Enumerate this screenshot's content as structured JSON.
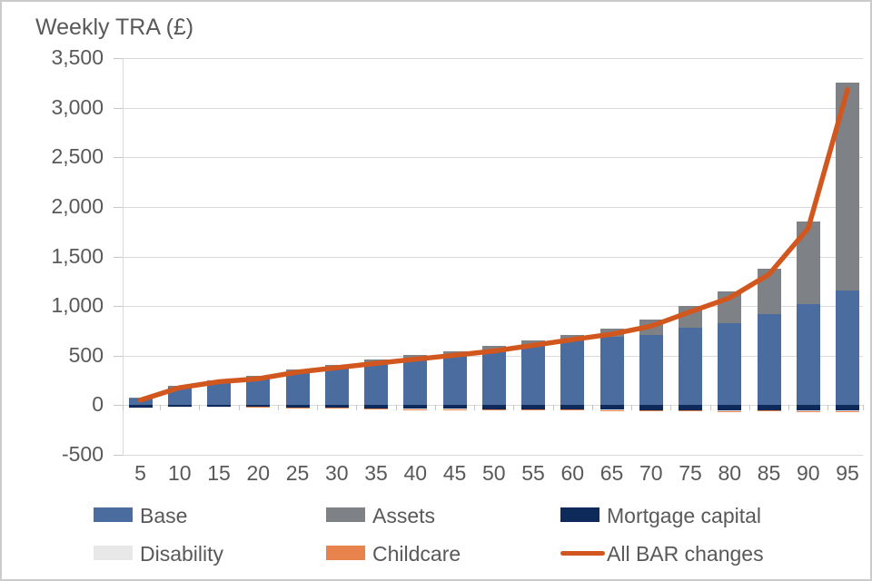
{
  "title": "Weekly TRA (£)",
  "chart_data": {
    "type": "bar",
    "subtype": "stacked-with-line",
    "title": "Weekly TRA (£)",
    "xlabel": "",
    "ylabel": "Weekly TRA (£)",
    "ylim": [
      -500,
      3500
    ],
    "grid": "horizontal",
    "legend_position": "bottom",
    "categories": [
      "5",
      "10",
      "15",
      "20",
      "25",
      "30",
      "35",
      "40",
      "45",
      "50",
      "55",
      "60",
      "65",
      "70",
      "75",
      "80",
      "85",
      "90",
      "95"
    ],
    "y_ticks": [
      {
        "value": 3500,
        "label": "3,500"
      },
      {
        "value": 3000,
        "label": "3,000"
      },
      {
        "value": 2500,
        "label": "2,500"
      },
      {
        "value": 2000,
        "label": "2,000"
      },
      {
        "value": 1500,
        "label": "1,500"
      },
      {
        "value": 1000,
        "label": "1,000"
      },
      {
        "value": 500,
        "label": "500"
      },
      {
        "value": 0,
        "label": "0"
      },
      {
        "value": -500,
        "label": "-500"
      }
    ],
    "series": [
      {
        "name": "Base",
        "color": "#4b6c9e",
        "values": [
          65,
          175,
          230,
          270,
          330,
          370,
          425,
          465,
          505,
          550,
          600,
          650,
          690,
          710,
          780,
          830,
          920,
          1020,
          1160
        ]
      },
      {
        "name": "Assets",
        "color": "#7e8287",
        "values": [
          10,
          20,
          25,
          25,
          30,
          35,
          35,
          40,
          40,
          45,
          50,
          60,
          85,
          150,
          220,
          320,
          460,
          830,
          2090
        ]
      },
      {
        "name": "Mortgage capital",
        "color": "#0e2a5a",
        "values": [
          -20,
          -15,
          -15,
          -15,
          -20,
          -20,
          -30,
          -35,
          -35,
          -40,
          -40,
          -40,
          -45,
          -50,
          -50,
          -55,
          -50,
          -55,
          -55
        ]
      },
      {
        "name": "Disability",
        "color": "#e8e8e8",
        "values": [
          -3,
          -3,
          -3,
          -3,
          -3,
          -3,
          -3,
          -3,
          -3,
          -3,
          -3,
          -3,
          -3,
          -3,
          -3,
          -3,
          -3,
          -3,
          -3
        ]
      },
      {
        "name": "Childcare",
        "color": "#e8834d",
        "values": [
          0,
          0,
          0,
          -10,
          -3,
          -3,
          -5,
          -3,
          -3,
          -5,
          -3,
          -5,
          -10,
          -10,
          -5,
          -10,
          -8,
          -8,
          -10
        ]
      }
    ],
    "line_series": {
      "name": "All BAR changes",
      "color": "#d2571e",
      "values": [
        52,
        177,
        237,
        267,
        334,
        379,
        422,
        464,
        504,
        547,
        604,
        662,
        717,
        797,
        942,
        1082,
        1319,
        1784,
        3182
      ]
    }
  },
  "colors": {
    "text": "#595959",
    "gridline": "#d9d9d9",
    "axis": "#c6c6c6",
    "border": "#cbcbcb"
  }
}
